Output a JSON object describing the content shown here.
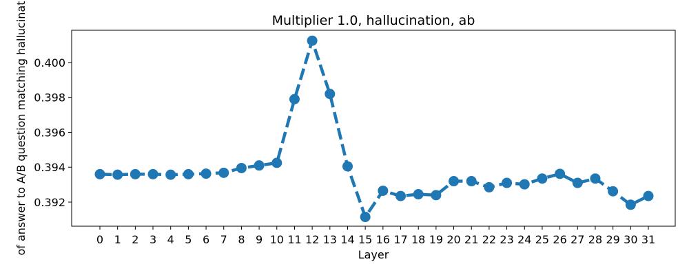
{
  "chart_data": {
    "type": "line",
    "title": "Multiplier 1.0, hallucination, ab",
    "xlabel": "Layer",
    "ylabel": "of answer to A/B question matching hallucinat",
    "x": [
      0,
      1,
      2,
      3,
      4,
      5,
      6,
      7,
      8,
      9,
      10,
      11,
      12,
      13,
      14,
      15,
      16,
      17,
      18,
      19,
      20,
      21,
      22,
      23,
      24,
      25,
      26,
      27,
      28,
      29,
      30,
      31
    ],
    "y_ticks": [
      "0.392",
      "0.394",
      "0.396",
      "0.398",
      "0.400"
    ],
    "ylim": [
      0.39062,
      0.40185
    ],
    "grid": false,
    "series": [
      {
        "values": [
          0.3936,
          0.39357,
          0.3936,
          0.3936,
          0.39357,
          0.3936,
          0.39363,
          0.39368,
          0.39395,
          0.3941,
          0.39425,
          0.3979,
          0.40125,
          0.3982,
          0.39405,
          0.39115,
          0.39265,
          0.39235,
          0.39245,
          0.3924,
          0.3932,
          0.3932,
          0.39285,
          0.3931,
          0.39302,
          0.39335,
          0.39362,
          0.3931,
          0.39335,
          0.39262,
          0.39185,
          0.39235
        ],
        "color": "#1f77b4",
        "line_style": "dashed",
        "marker": "circle"
      }
    ]
  }
}
